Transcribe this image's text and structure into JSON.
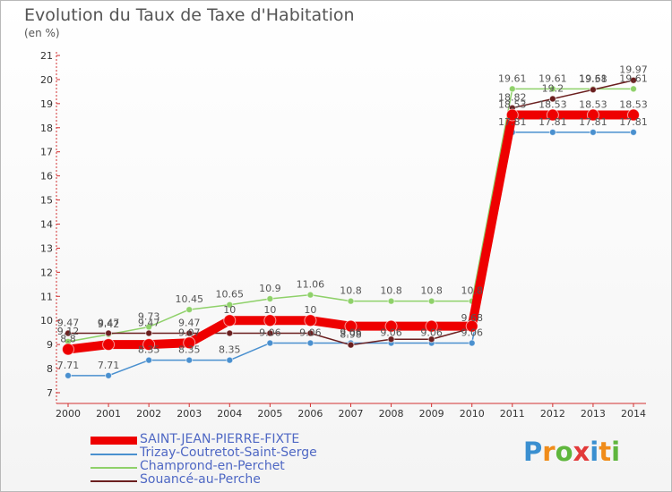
{
  "title": "Evolution du Taux de Taxe d'Habitation",
  "subtitle": "(en %)",
  "logo": {
    "text": "Proxiti",
    "colors": [
      "#3a8fd0",
      "#f08c1a",
      "#5fb63d",
      "#e23a3a",
      "#3a8fd0",
      "#f08c1a",
      "#5fb63d"
    ]
  },
  "chart_data": {
    "type": "line",
    "title": "Evolution du Taux de Taxe d'Habitation",
    "ylabel": "(en %)",
    "x": [
      2000,
      2001,
      2002,
      2003,
      2004,
      2005,
      2006,
      2007,
      2008,
      2009,
      2010,
      2011,
      2012,
      2013,
      2014
    ],
    "xtick_labels": [
      "2000",
      "2001",
      "2002",
      "2003",
      "2004",
      "2005",
      "2006",
      "2007",
      "2008",
      "2009",
      "2010",
      "2011",
      "2012",
      "2013",
      "2014"
    ],
    "ylim": [
      7,
      21
    ],
    "yticks": [
      7,
      8,
      9,
      10,
      11,
      12,
      13,
      14,
      15,
      16,
      17,
      18,
      19,
      20,
      21
    ],
    "ytick_labels": [
      "7",
      "8",
      "9",
      "10",
      "11",
      "12",
      "13",
      "14",
      "15",
      "16",
      "17",
      "18",
      "19",
      "20",
      "21"
    ],
    "grid": false,
    "series": [
      {
        "name": "SAINT-JEAN-PIERRE-FIXTE",
        "color": "#ee0000",
        "values": [
          8.8,
          9.0,
          9.0,
          9.07,
          10.0,
          10.0,
          10.0,
          9.76,
          9.76,
          9.76,
          9.76,
          18.53,
          18.53,
          18.53,
          18.53
        ],
        "labels": [
          "8.8",
          "",
          "",
          "9.07",
          "10",
          "10",
          "10",
          "",
          "",
          "",
          "",
          "18.53",
          "18.53",
          "18.53",
          "18.53"
        ]
      },
      {
        "name": "Trizay-Coutretot-Saint-Serge",
        "color": "#4a90cf",
        "values": [
          7.71,
          7.71,
          8.35,
          8.35,
          8.35,
          9.06,
          9.06,
          9.06,
          9.06,
          9.06,
          9.06,
          17.81,
          17.81,
          17.81,
          17.81
        ],
        "labels": [
          "7.71",
          "7.71",
          "8.35",
          "8.35",
          "8.35",
          "9.06",
          "9.06",
          "9.06",
          "9.06",
          "9.06",
          "9.06",
          "17.81",
          "17.81",
          "17.81",
          "17.81"
        ]
      },
      {
        "name": "Champrond-en-Perchet",
        "color": "#8fd16a",
        "values": [
          9.12,
          9.42,
          9.73,
          10.45,
          10.65,
          10.9,
          11.06,
          10.8,
          10.8,
          10.8,
          10.8,
          19.61,
          19.61,
          19.61,
          19.61
        ],
        "labels": [
          "9.12",
          "9.42",
          "9.73",
          "10.45",
          "10.65",
          "10.9",
          "11.06",
          "10.8",
          "10.8",
          "10.8",
          "10.8",
          "19.61",
          "19.61",
          "19.61",
          "19.61"
        ]
      },
      {
        "name": "Souancé-au-Perche",
        "color": "#6b1f1f",
        "values": [
          9.47,
          9.47,
          9.47,
          9.47,
          9.47,
          9.47,
          9.47,
          8.98,
          9.22,
          9.22,
          9.68,
          18.82,
          19.2,
          19.58,
          19.97
        ],
        "labels": [
          "9.47",
          "9.47",
          "9.47",
          "9.47",
          "",
          "",
          "",
          "8.98",
          "",
          "",
          "9.68",
          "18.82",
          "19.2",
          "19.58",
          "19.97"
        ]
      }
    ]
  }
}
